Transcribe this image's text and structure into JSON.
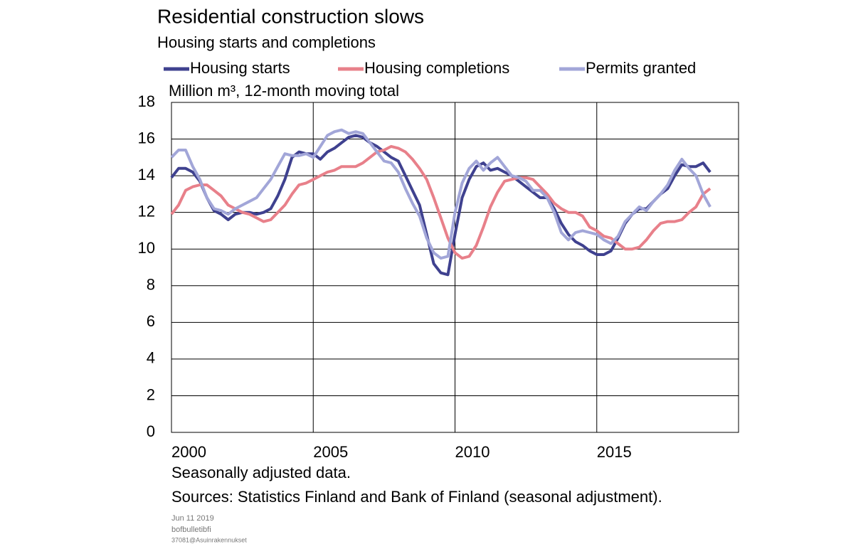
{
  "chart_data": {
    "type": "line",
    "title": "Residential construction slows",
    "subtitle": "Housing starts and completions",
    "ylabel": "Million m³, 12-month moving total",
    "notes": [
      "Seasonally adjusted data.",
      "Sources: Statistics Finland and Bank of Finland (seasonal adjustment)."
    ],
    "footer": [
      "Jun 11 2019",
      "bofbulletibfi",
      "37081@Asuinrakennukset"
    ],
    "xlim": [
      2000,
      2020
    ],
    "xticks": [
      2000,
      2005,
      2010,
      2015
    ],
    "ylim": [
      0,
      18
    ],
    "yticks": [
      0,
      2,
      4,
      6,
      8,
      10,
      12,
      14,
      16,
      18
    ],
    "grid": true,
    "x": [
      2000,
      2000.25,
      2000.5,
      2000.75,
      2001,
      2001.25,
      2001.5,
      2001.75,
      2002,
      2002.25,
      2002.5,
      2002.75,
      2003,
      2003.25,
      2003.5,
      2003.75,
      2004,
      2004.25,
      2004.5,
      2004.75,
      2005,
      2005.25,
      2005.5,
      2005.75,
      2006,
      2006.25,
      2006.5,
      2006.75,
      2007,
      2007.25,
      2007.5,
      2007.75,
      2008,
      2008.25,
      2008.5,
      2008.75,
      2009,
      2009.25,
      2009.5,
      2009.75,
      2010,
      2010.25,
      2010.5,
      2010.75,
      2011,
      2011.25,
      2011.5,
      2011.75,
      2012,
      2012.25,
      2012.5,
      2012.75,
      2013,
      2013.25,
      2013.5,
      2013.75,
      2014,
      2014.25,
      2014.5,
      2014.75,
      2015,
      2015.25,
      2015.5,
      2015.75,
      2016,
      2016.25,
      2016.5,
      2016.75,
      2017,
      2017.25,
      2017.5,
      2017.75,
      2018,
      2018.25,
      2018.5,
      2018.75,
      2019
    ],
    "series": [
      {
        "name": "Housing starts",
        "color": "#3f418f",
        "values": [
          13.9,
          14.4,
          14.4,
          14.2,
          13.7,
          12.8,
          12.1,
          11.9,
          11.6,
          11.9,
          12.0,
          12.0,
          11.9,
          12.0,
          12.2,
          12.9,
          13.8,
          15.0,
          15.3,
          15.2,
          15.2,
          14.9,
          15.3,
          15.5,
          15.8,
          16.1,
          16.2,
          16.1,
          15.8,
          15.6,
          15.3,
          15.0,
          14.8,
          14.0,
          13.2,
          12.4,
          10.8,
          9.2,
          8.7,
          8.6,
          10.8,
          12.8,
          13.8,
          14.5,
          14.7,
          14.3,
          14.4,
          14.2,
          14.0,
          13.7,
          13.4,
          13.1,
          12.8,
          12.8,
          12.2,
          11.4,
          10.8,
          10.4,
          10.2,
          9.9,
          9.7,
          9.7,
          9.9,
          10.6,
          11.4,
          11.9,
          12.2,
          12.2,
          12.6,
          13.0,
          13.3,
          14.0,
          14.6,
          14.5,
          14.5,
          14.7,
          14.2
        ]
      },
      {
        "name": "Housing completions",
        "color": "#e8808a",
        "values": [
          11.9,
          12.4,
          13.2,
          13.4,
          13.5,
          13.5,
          13.2,
          12.9,
          12.4,
          12.2,
          12.0,
          11.9,
          11.7,
          11.5,
          11.6,
          12.0,
          12.4,
          13.0,
          13.5,
          13.6,
          13.8,
          14.0,
          14.2,
          14.3,
          14.5,
          14.5,
          14.5,
          14.7,
          15.0,
          15.3,
          15.4,
          15.6,
          15.5,
          15.3,
          14.9,
          14.4,
          13.8,
          12.8,
          11.7,
          10.6,
          9.8,
          9.5,
          9.6,
          10.2,
          11.2,
          12.3,
          13.1,
          13.7,
          13.8,
          13.9,
          13.9,
          13.8,
          13.4,
          13.0,
          12.5,
          12.2,
          12.0,
          12.0,
          11.8,
          11.2,
          11.0,
          10.7,
          10.6,
          10.3,
          10.0,
          10.0,
          10.1,
          10.5,
          11.0,
          11.4,
          11.5,
          11.5,
          11.6,
          12.0,
          12.3,
          13.0,
          13.3
        ]
      },
      {
        "name": "Permits granted",
        "color": "#a2a6d8",
        "values": [
          15.0,
          15.4,
          15.4,
          14.5,
          13.8,
          12.8,
          12.2,
          12.1,
          11.9,
          12.2,
          12.4,
          12.6,
          12.8,
          13.3,
          13.8,
          14.5,
          15.2,
          15.1,
          15.1,
          15.2,
          15.0,
          15.6,
          16.2,
          16.4,
          16.5,
          16.3,
          16.4,
          16.3,
          15.8,
          15.3,
          14.8,
          14.7,
          14.2,
          13.3,
          12.5,
          11.8,
          10.6,
          9.8,
          9.5,
          9.6,
          12.0,
          13.6,
          14.4,
          14.8,
          14.3,
          14.7,
          15.0,
          14.5,
          14.0,
          13.9,
          13.7,
          13.2,
          13.2,
          12.8,
          12.0,
          10.9,
          10.5,
          10.9,
          11.0,
          10.9,
          10.8,
          10.5,
          10.3,
          10.7,
          11.5,
          11.9,
          12.3,
          12.1,
          12.6,
          13.0,
          13.5,
          14.3,
          14.9,
          14.4,
          14.0,
          13.0,
          12.3
        ]
      }
    ]
  }
}
